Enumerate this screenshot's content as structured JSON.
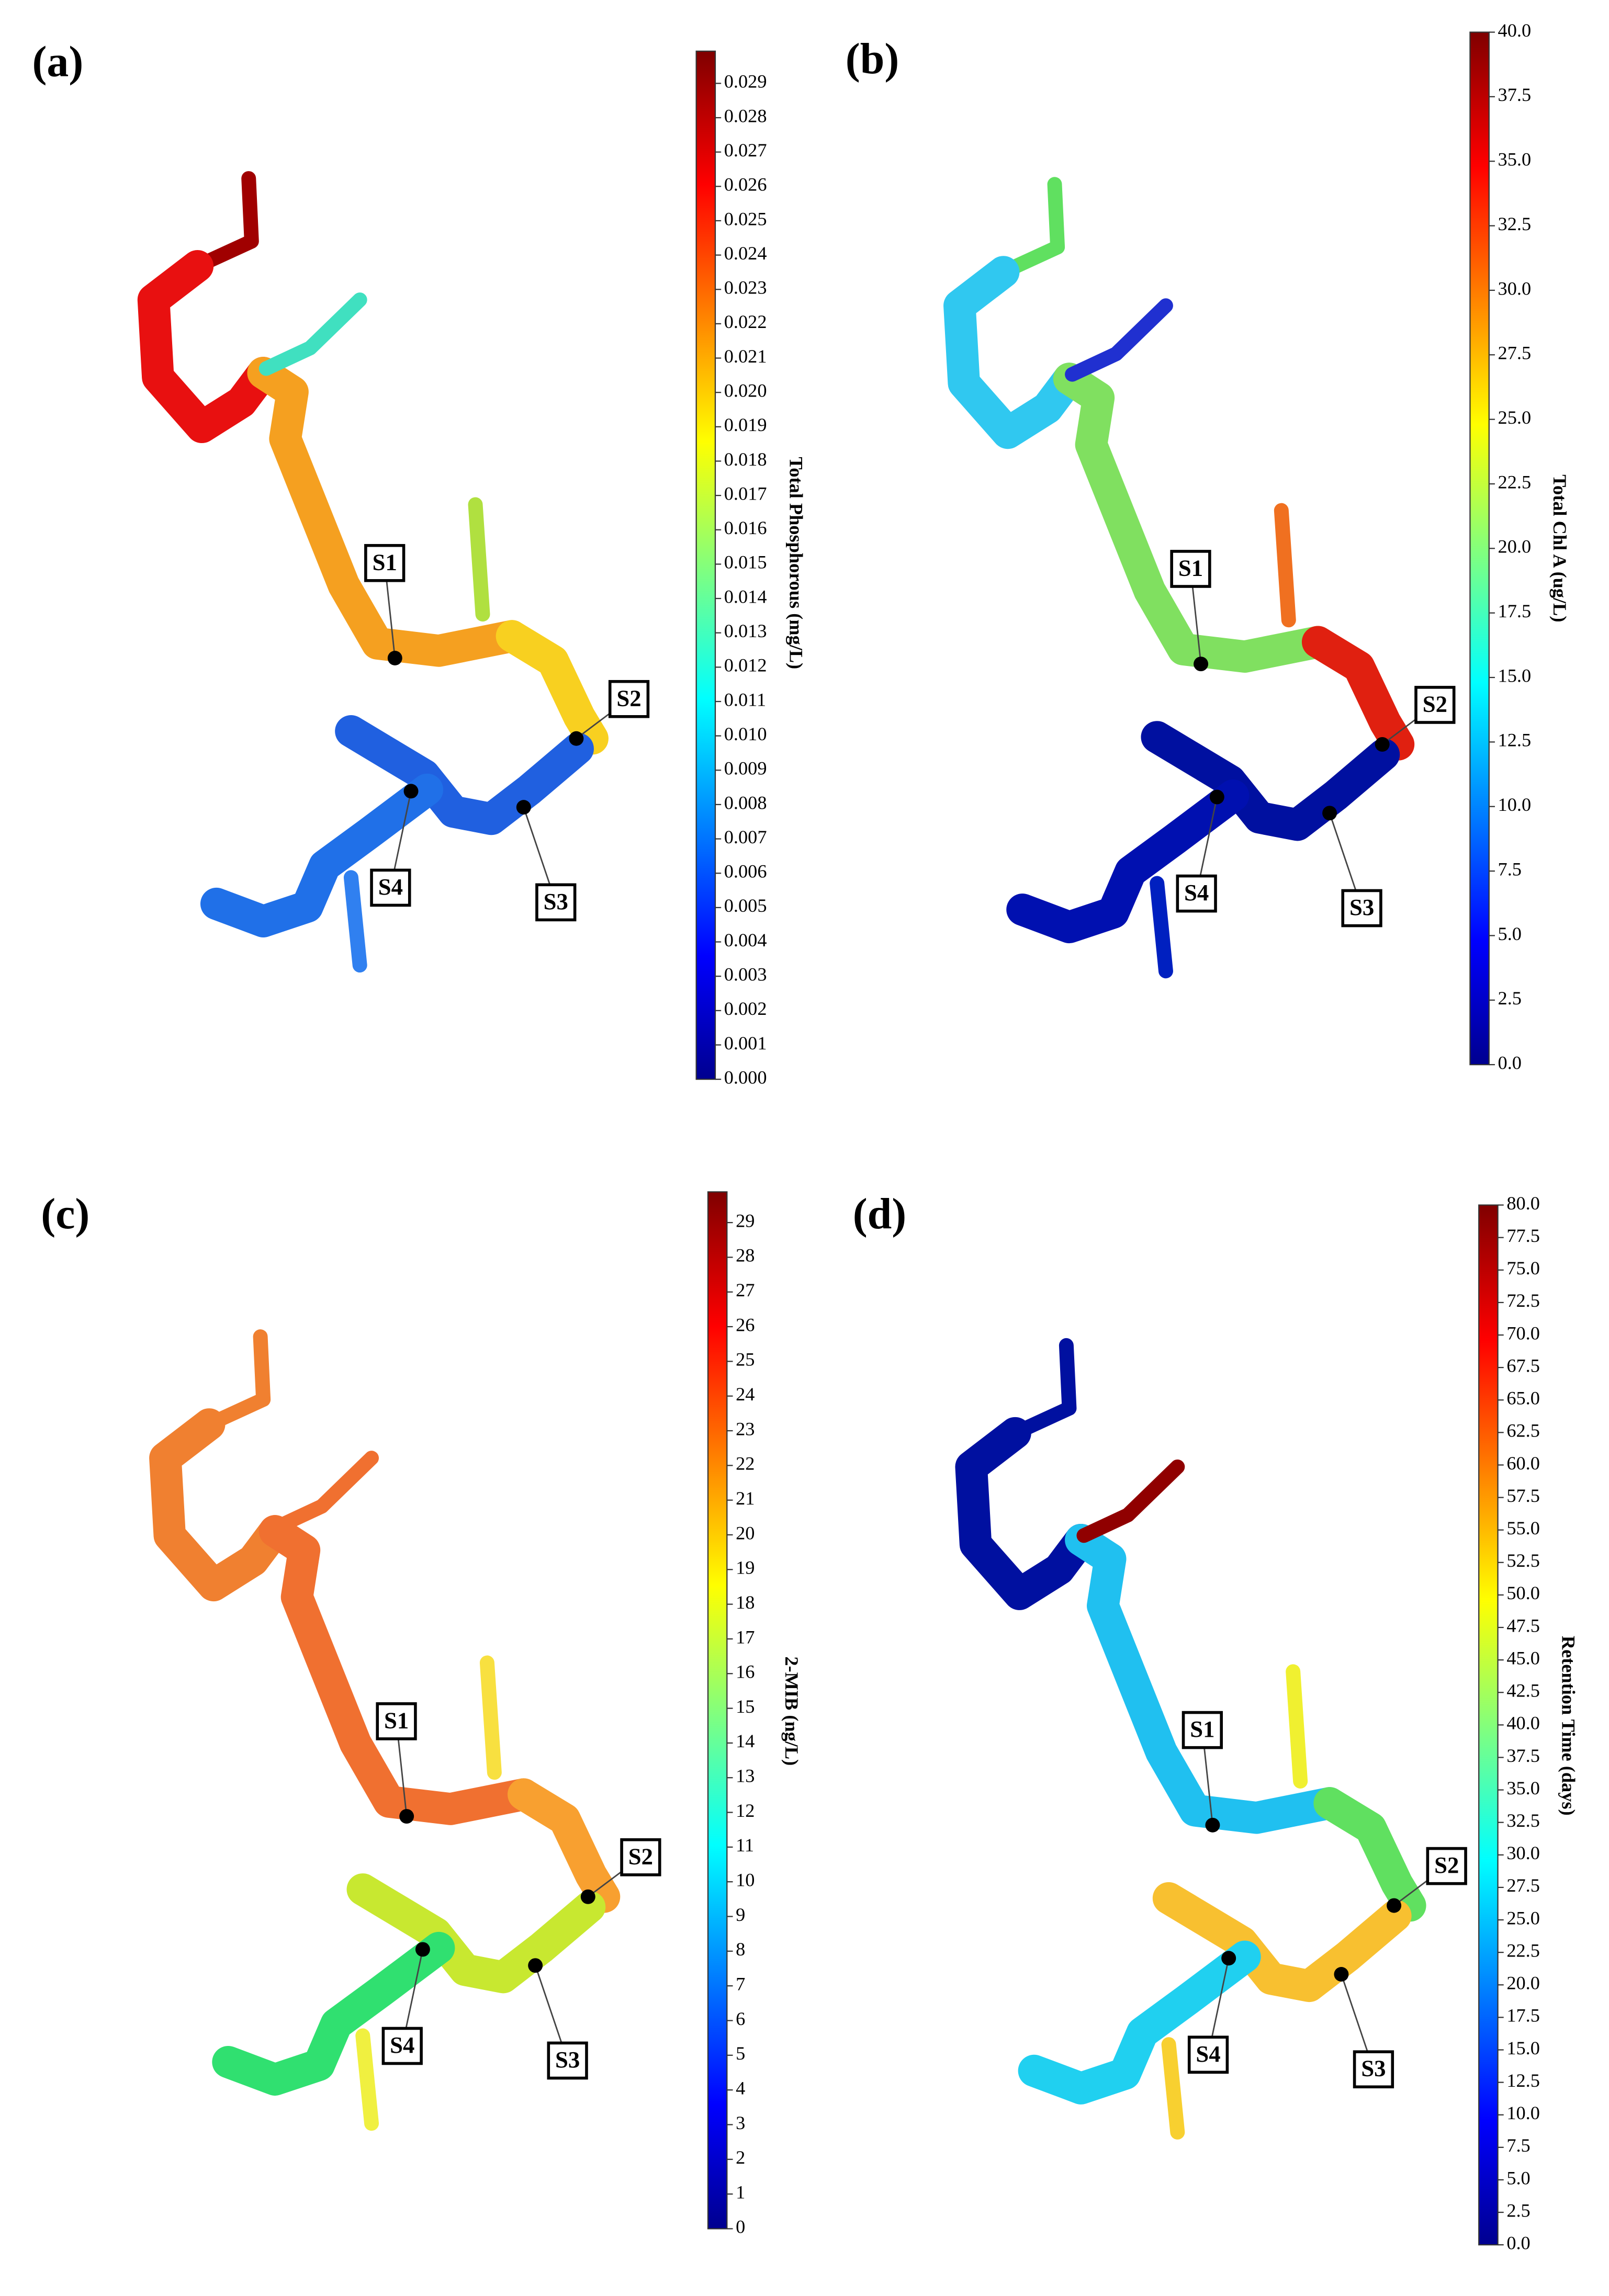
{
  "panels": [
    {
      "label": "(a)",
      "colorbar": {
        "title": "Total Phosphorous (mg/L)",
        "ticks": [
          "0.000",
          "0.001",
          "0.002",
          "0.003",
          "0.004",
          "0.005",
          "0.006",
          "0.007",
          "0.008",
          "0.009",
          "0.010",
          "0.011",
          "0.012",
          "0.013",
          "0.014",
          "0.015",
          "0.016",
          "0.017",
          "0.018",
          "0.019",
          "0.020",
          "0.021",
          "0.022",
          "0.023",
          "0.024",
          "0.025",
          "0.026",
          "0.027",
          "0.028",
          "0.029"
        ]
      },
      "stations": [
        "S1",
        "S2",
        "S3",
        "S4"
      ]
    },
    {
      "label": "(b)",
      "colorbar": {
        "title": "Total Chl A (ug/L)",
        "ticks": [
          "0.0",
          "2.5",
          "5.0",
          "7.5",
          "10.0",
          "12.5",
          "15.0",
          "17.5",
          "20.0",
          "22.5",
          "25.0",
          "27.5",
          "30.0",
          "32.5",
          "35.0",
          "37.5",
          "40.0"
        ]
      },
      "stations": [
        "S1",
        "S2",
        "S3",
        "S4"
      ]
    },
    {
      "label": "(c)",
      "colorbar": {
        "title": "2-MIB (ng/L)",
        "ticks": [
          "0",
          "1",
          "2",
          "3",
          "4",
          "5",
          "6",
          "7",
          "8",
          "9",
          "10",
          "11",
          "12",
          "13",
          "14",
          "15",
          "16",
          "17",
          "18",
          "19",
          "20",
          "21",
          "22",
          "23",
          "24",
          "25",
          "26",
          "27",
          "28",
          "29"
        ]
      },
      "stations": [
        "S1",
        "S2",
        "S3",
        "S4"
      ]
    },
    {
      "label": "(d)",
      "colorbar": {
        "title": "Retention Time (days)",
        "ticks": [
          "0.0",
          "2.5",
          "5.0",
          "7.5",
          "10.0",
          "12.5",
          "15.0",
          "17.5",
          "20.0",
          "22.5",
          "25.0",
          "27.5",
          "30.0",
          "32.5",
          "35.0",
          "37.5",
          "40.0",
          "42.5",
          "45.0",
          "47.5",
          "50.0",
          "52.5",
          "55.0",
          "57.5",
          "60.0",
          "62.5",
          "65.0",
          "67.5",
          "70.0",
          "72.5",
          "75.0",
          "77.5",
          "80.0"
        ]
      },
      "stations": [
        "S1",
        "S2",
        "S3",
        "S4"
      ]
    }
  ]
}
